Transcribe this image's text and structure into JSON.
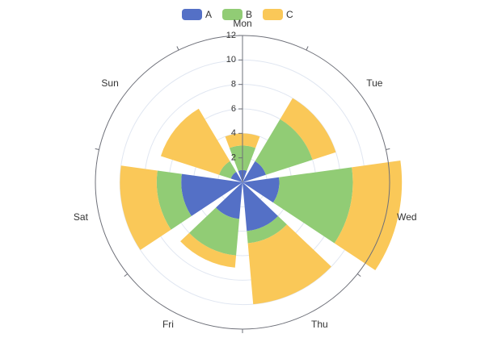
{
  "chart_data": {
    "type": "polar-stacked-bar",
    "categories": [
      "Mon",
      "Tue",
      "Wed",
      "Thu",
      "Fri",
      "Sat",
      "Sun"
    ],
    "series": [
      {
        "name": "A",
        "values": [
          1,
          2,
          3,
          4,
          3,
          5,
          1
        ],
        "color": "#5470c6"
      },
      {
        "name": "B",
        "values": [
          2,
          4,
          6,
          1,
          3,
          2,
          1
        ],
        "color": "#91cc75"
      },
      {
        "name": "C",
        "values": [
          1,
          2,
          4,
          5,
          1,
          3,
          5
        ],
        "color": "#fac858"
      }
    ],
    "radial_axis": {
      "min": 0,
      "max": 12,
      "ticks": [
        2,
        4,
        6,
        8,
        10,
        12
      ]
    },
    "legend_position": "top-center",
    "grid": true
  }
}
